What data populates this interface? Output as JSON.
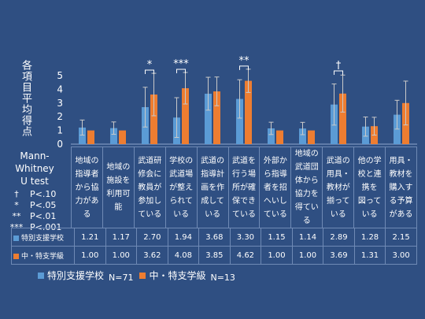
{
  "chart_data": {
    "type": "bar",
    "ylabel": "各項目平均得点",
    "ylim": [
      0,
      5
    ],
    "yticks": [
      "0",
      "1",
      "2",
      "3",
      "4",
      "5"
    ],
    "categories": [
      "地域の指導者から協力がある",
      "地域の施設を利用可能",
      "武道研修会に教員が参加している",
      "学校の武道場が整えられている",
      "武道の指導計画を作成している",
      "武道を行う場所が確保できている",
      "外部から指導者を招へいしている",
      "地域の武道団体から協力を得ている",
      "武道の用具・教材が揃っている",
      "他の学校と連携を図っている",
      "用具・教材を購入する予算がある"
    ],
    "category_lines": [
      [
        "地域の",
        "指導者",
        "から協",
        "力があ",
        "る"
      ],
      [
        "地域の",
        "施設を",
        "利用可",
        "能"
      ],
      [
        "武道研",
        "修会に",
        "教員が",
        "参加し",
        "ている"
      ],
      [
        "学校の",
        "武道場",
        "が整え",
        "られて",
        "いる"
      ],
      [
        "武道の",
        "指導計",
        "画を作",
        "成して",
        "いる"
      ],
      [
        "武道を",
        "行う場",
        "所が確",
        "保でき",
        "ている"
      ],
      [
        "外部か",
        "ら指導",
        "者を招",
        "へいし",
        "ている"
      ],
      [
        "地域の",
        "武道団",
        "体から",
        "協力を",
        "得ている"
      ],
      [
        "武道の",
        "用具・",
        "教材が",
        "揃って",
        "いる"
      ],
      [
        "他の学",
        "校と連",
        "携を",
        "図って",
        "いる"
      ],
      [
        "用具・",
        "教材を",
        "購入す",
        "る予算",
        "がある"
      ]
    ],
    "series": [
      {
        "name": "特別支援学校",
        "legend_label": "特別支援学校",
        "n_label": "N=71",
        "color": "#5b9bd5",
        "values": [
          1.21,
          1.17,
          2.7,
          1.94,
          3.68,
          3.3,
          1.15,
          1.14,
          2.89,
          1.28,
          2.15
        ],
        "errors": [
          0.55,
          0.45,
          1.45,
          1.45,
          1.2,
          1.4,
          0.45,
          0.45,
          1.5,
          0.7,
          1.05
        ]
      },
      {
        "name": "中・特支学級",
        "legend_label": "中・特支学級",
        "n_label": "N=13",
        "color": "#ed7d31",
        "values": [
          1.0,
          1.0,
          3.62,
          4.08,
          3.85,
          4.62,
          1.0,
          1.0,
          3.69,
          1.31,
          3.0
        ],
        "errors": [
          0.0,
          0.0,
          1.55,
          1.15,
          1.05,
          0.85,
          0.0,
          0.0,
          1.35,
          0.65,
          1.6
        ]
      }
    ],
    "table_values": [
      [
        "1.21",
        "1.17",
        "2.70",
        "1.94",
        "3.68",
        "3.30",
        "1.15",
        "1.14",
        "2.89",
        "1.28",
        "2.15"
      ],
      [
        "1.00",
        "1.00",
        "3.62",
        "4.08",
        "3.85",
        "4.62",
        "1.00",
        "1.00",
        "3.69",
        "1.31",
        "3.00"
      ]
    ],
    "significance": [
      {
        "index": 2,
        "mark": "*"
      },
      {
        "index": 3,
        "mark": "***"
      },
      {
        "index": 5,
        "mark": "**"
      },
      {
        "index": 8,
        "mark": "†"
      }
    ]
  },
  "stats": {
    "title_line1": "Mann-Whitney",
    "title_line2": "U test",
    "rows": [
      {
        "symbol": "†",
        "p": "P<.10"
      },
      {
        "symbol": "*",
        "p": "P<.05"
      },
      {
        "symbol": "**",
        "p": "P<.01"
      },
      {
        "symbol": "***",
        "p": "P<.001"
      }
    ]
  }
}
